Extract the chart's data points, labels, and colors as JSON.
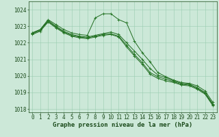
{
  "hours": [
    0,
    1,
    2,
    3,
    4,
    5,
    6,
    7,
    8,
    9,
    10,
    11,
    12,
    13,
    14,
    15,
    16,
    17,
    18,
    19,
    20,
    21,
    22,
    23
  ],
  "series": [
    [
      1022.6,
      1022.8,
      1023.4,
      1023.1,
      1022.8,
      1022.6,
      1022.5,
      1022.45,
      1023.5,
      1023.75,
      1023.75,
      1023.4,
      1023.2,
      1022.1,
      1021.4,
      1020.85,
      1020.2,
      1019.95,
      1019.75,
      1019.6,
      1019.55,
      1019.4,
      1019.1,
      1018.4
    ],
    [
      1022.6,
      1022.8,
      1023.35,
      1023.0,
      1022.7,
      1022.5,
      1022.4,
      1022.35,
      1022.45,
      1022.55,
      1022.65,
      1022.5,
      1022.0,
      1021.5,
      1021.0,
      1020.45,
      1020.05,
      1019.9,
      1019.7,
      1019.55,
      1019.5,
      1019.3,
      1019.0,
      1018.3
    ],
    [
      1022.55,
      1022.75,
      1023.3,
      1022.95,
      1022.65,
      1022.45,
      1022.35,
      1022.3,
      1022.4,
      1022.5,
      1022.55,
      1022.4,
      1021.85,
      1021.3,
      1020.8,
      1020.2,
      1019.95,
      1019.8,
      1019.65,
      1019.5,
      1019.45,
      1019.25,
      1018.95,
      1018.25
    ],
    [
      1022.5,
      1022.7,
      1023.25,
      1022.9,
      1022.6,
      1022.4,
      1022.3,
      1022.25,
      1022.35,
      1022.45,
      1022.5,
      1022.35,
      1021.75,
      1021.2,
      1020.7,
      1020.1,
      1019.85,
      1019.7,
      1019.6,
      1019.45,
      1019.4,
      1019.2,
      1018.9,
      1018.2
    ]
  ],
  "line_color": "#1e6b1e",
  "marker_color": "#2a7a2a",
  "bg_color": "#cce8d8",
  "grid_color": "#99ccb0",
  "xlabel": "Graphe pression niveau de la mer (hPa)",
  "ylim": [
    1017.8,
    1024.5
  ],
  "yticks": [
    1018,
    1019,
    1020,
    1021,
    1022,
    1023,
    1024
  ],
  "xlim": [
    -0.5,
    23.5
  ],
  "tick_fontsize": 5.5,
  "label_fontsize": 6.5
}
